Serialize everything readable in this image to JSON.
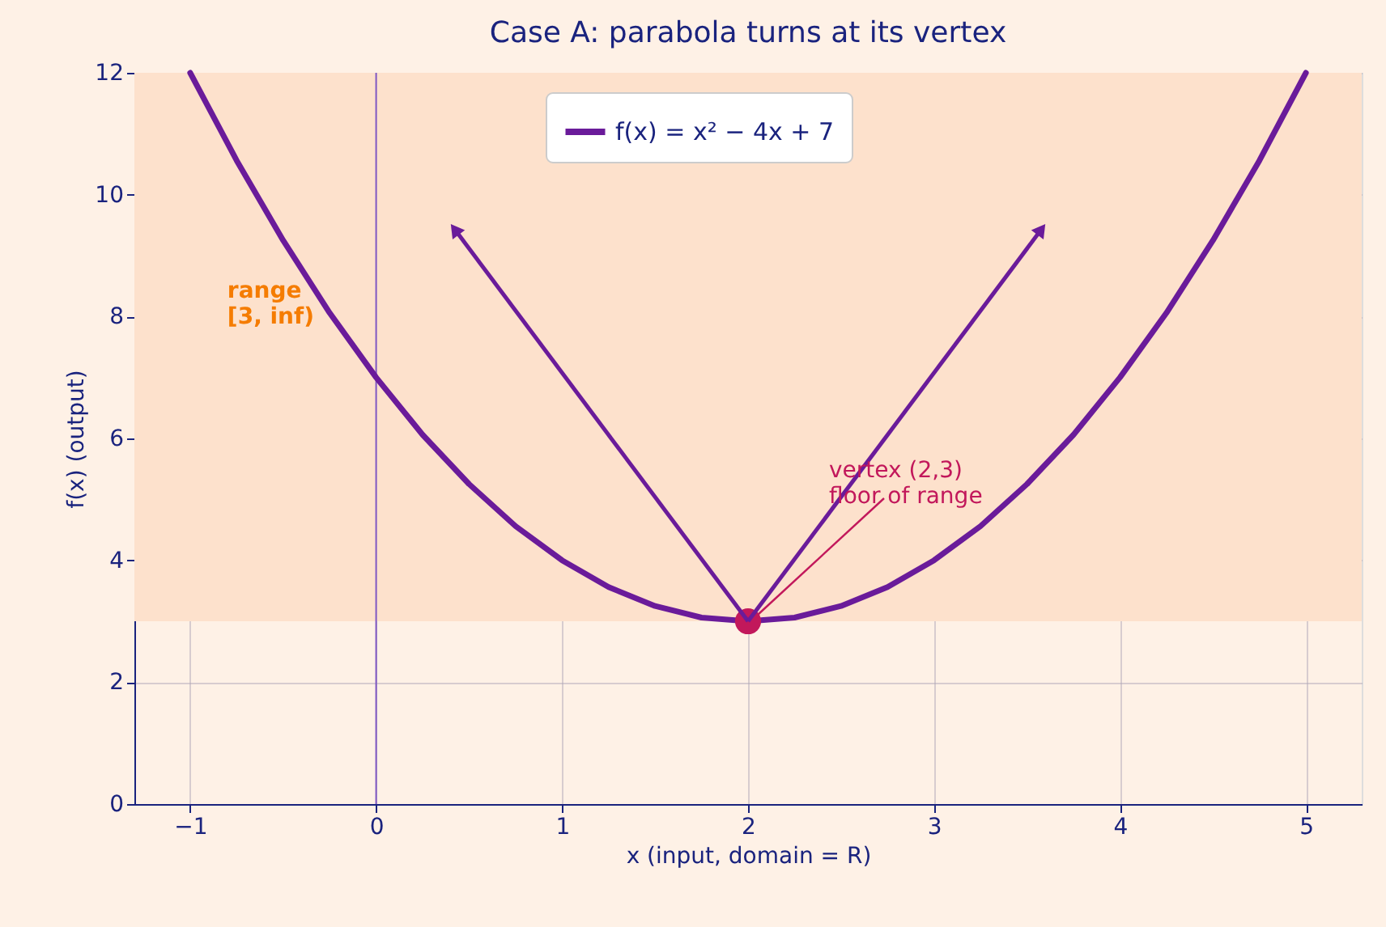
{
  "chart_data": {
    "type": "line",
    "title": "Case A: parabola turns at its vertex",
    "xlabel": "x  (input, domain = R)",
    "ylabel": "f(x)  (output)",
    "xlim": [
      -1.3,
      5.3
    ],
    "ylim": [
      0,
      12
    ],
    "xticks": [
      -1,
      0,
      1,
      2,
      3,
      4,
      5
    ],
    "yticks": [
      0,
      2,
      4,
      6,
      8,
      10,
      12
    ],
    "grid": true,
    "legend": "top",
    "series": [
      {
        "name": "f(x) = x² − 4x + 7",
        "color": "#6a1b9a",
        "x": [
          -1,
          -0.75,
          -0.5,
          -0.25,
          0,
          0.25,
          0.5,
          0.75,
          1,
          1.25,
          1.5,
          1.75,
          2,
          2.25,
          2.5,
          2.75,
          3,
          3.25,
          3.5,
          3.75,
          4,
          4.25,
          4.5,
          4.75,
          5
        ],
        "values": [
          12,
          10.56,
          9.25,
          8.06,
          7,
          6.06,
          5.25,
          4.56,
          4,
          3.56,
          3.25,
          3.06,
          3,
          3.06,
          3.25,
          3.56,
          4,
          4.56,
          5.25,
          6.06,
          7,
          8.06,
          9.25,
          10.56,
          12
        ]
      },
      {
        "type": "scatter",
        "color": "#c2185b",
        "x": [
          2
        ],
        "values": [
          3
        ],
        "marker": "circle"
      },
      {
        "type": "line",
        "color": "#6a1b9a",
        "x": [
          2,
          0.43
        ],
        "values": [
          3,
          9.4
        ],
        "marker": "triangle"
      },
      {
        "type": "line",
        "color": "#6a1b9a",
        "x": [
          2,
          3.57
        ],
        "values": [
          3,
          9.4
        ],
        "marker": "triangle"
      }
    ],
    "ref_lines": [
      {
        "axis": "x",
        "value": 0,
        "color": "#7e57c2"
      }
    ],
    "bands": [
      {
        "axis": "y",
        "from": 3,
        "to": 12,
        "label": "range\n[3, inf)",
        "color": "#fde1cc"
      }
    ],
    "annotations": [
      {
        "text": "vertex (2,3)\nfloor of range",
        "x": 2,
        "y": 3
      }
    ]
  }
}
